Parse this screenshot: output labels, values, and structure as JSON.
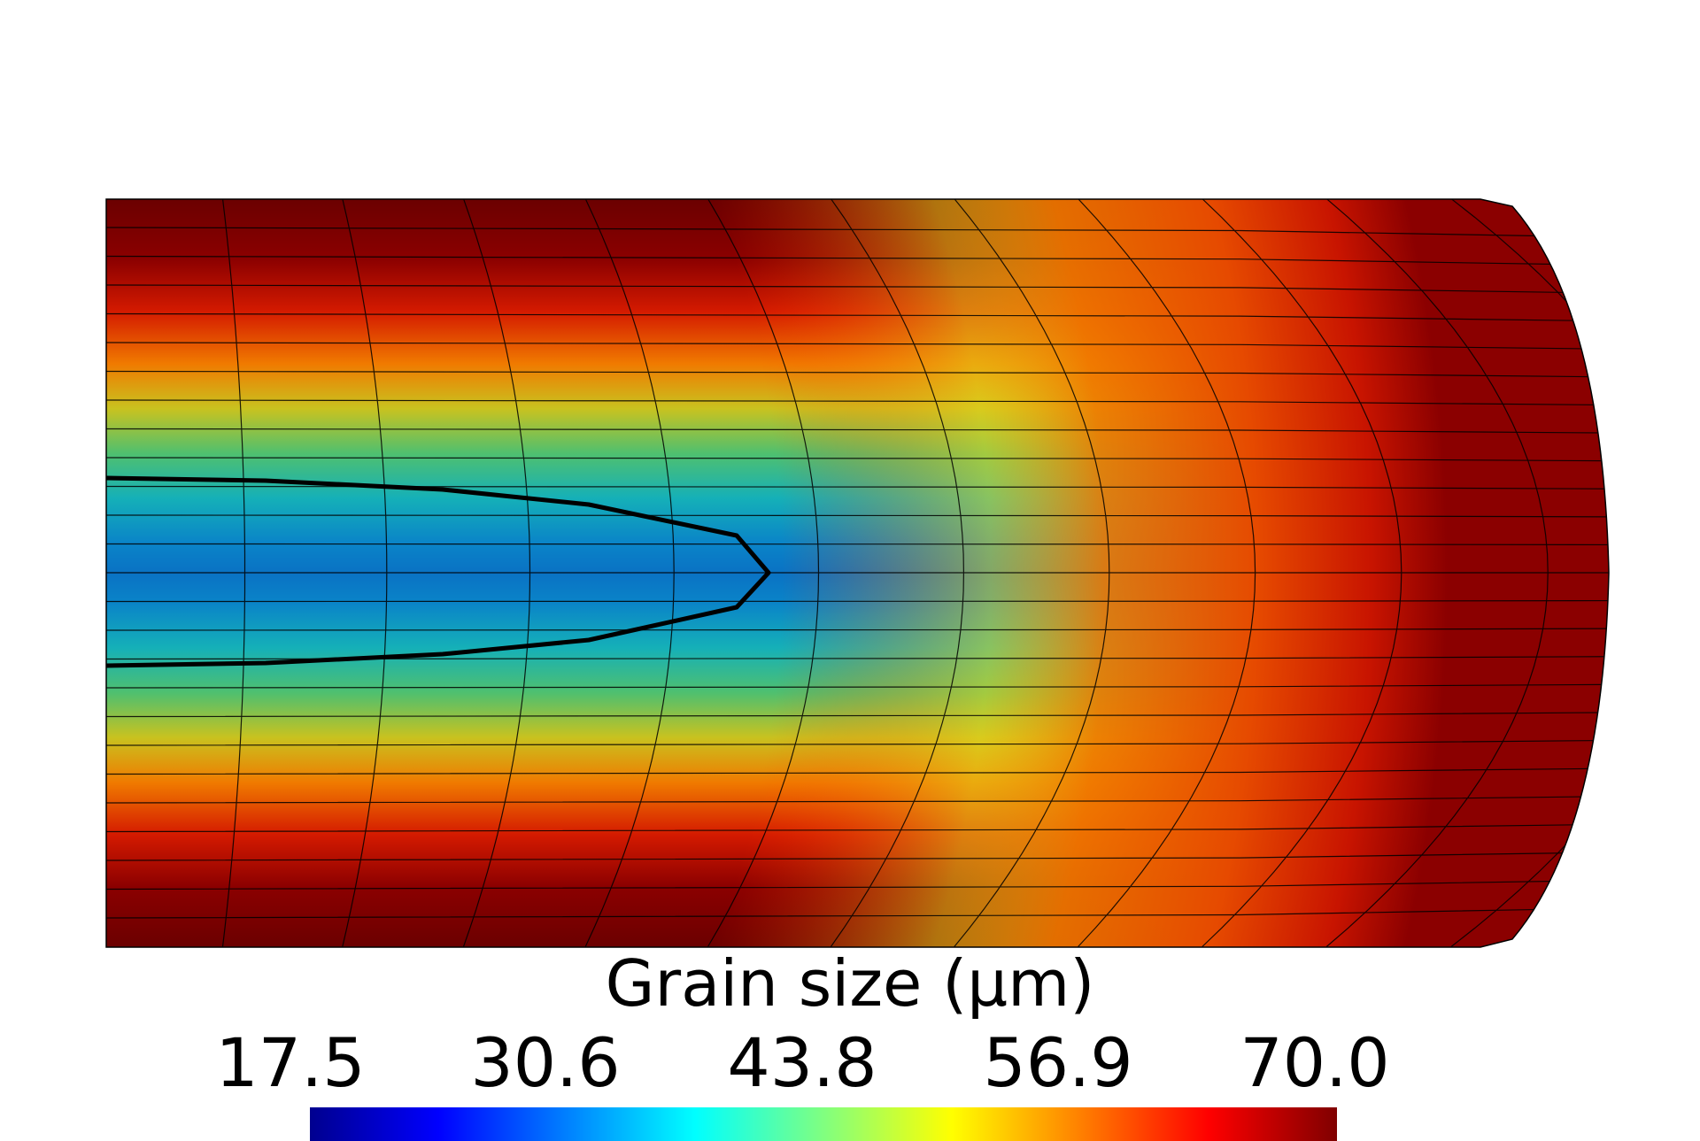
{
  "legend": {
    "title": "Grain size (μm)",
    "ticks": [
      "17.5",
      "30.6",
      "43.8",
      "56.9",
      "70.0"
    ],
    "colormap": [
      "#00008f",
      "#0000ff",
      "#0080ff",
      "#00ffff",
      "#80ff80",
      "#ffff00",
      "#ff8000",
      "#ff0000",
      "#800000"
    ]
  },
  "field": {
    "min": 17.5,
    "max": 70.0,
    "contour_level": 30.6
  }
}
